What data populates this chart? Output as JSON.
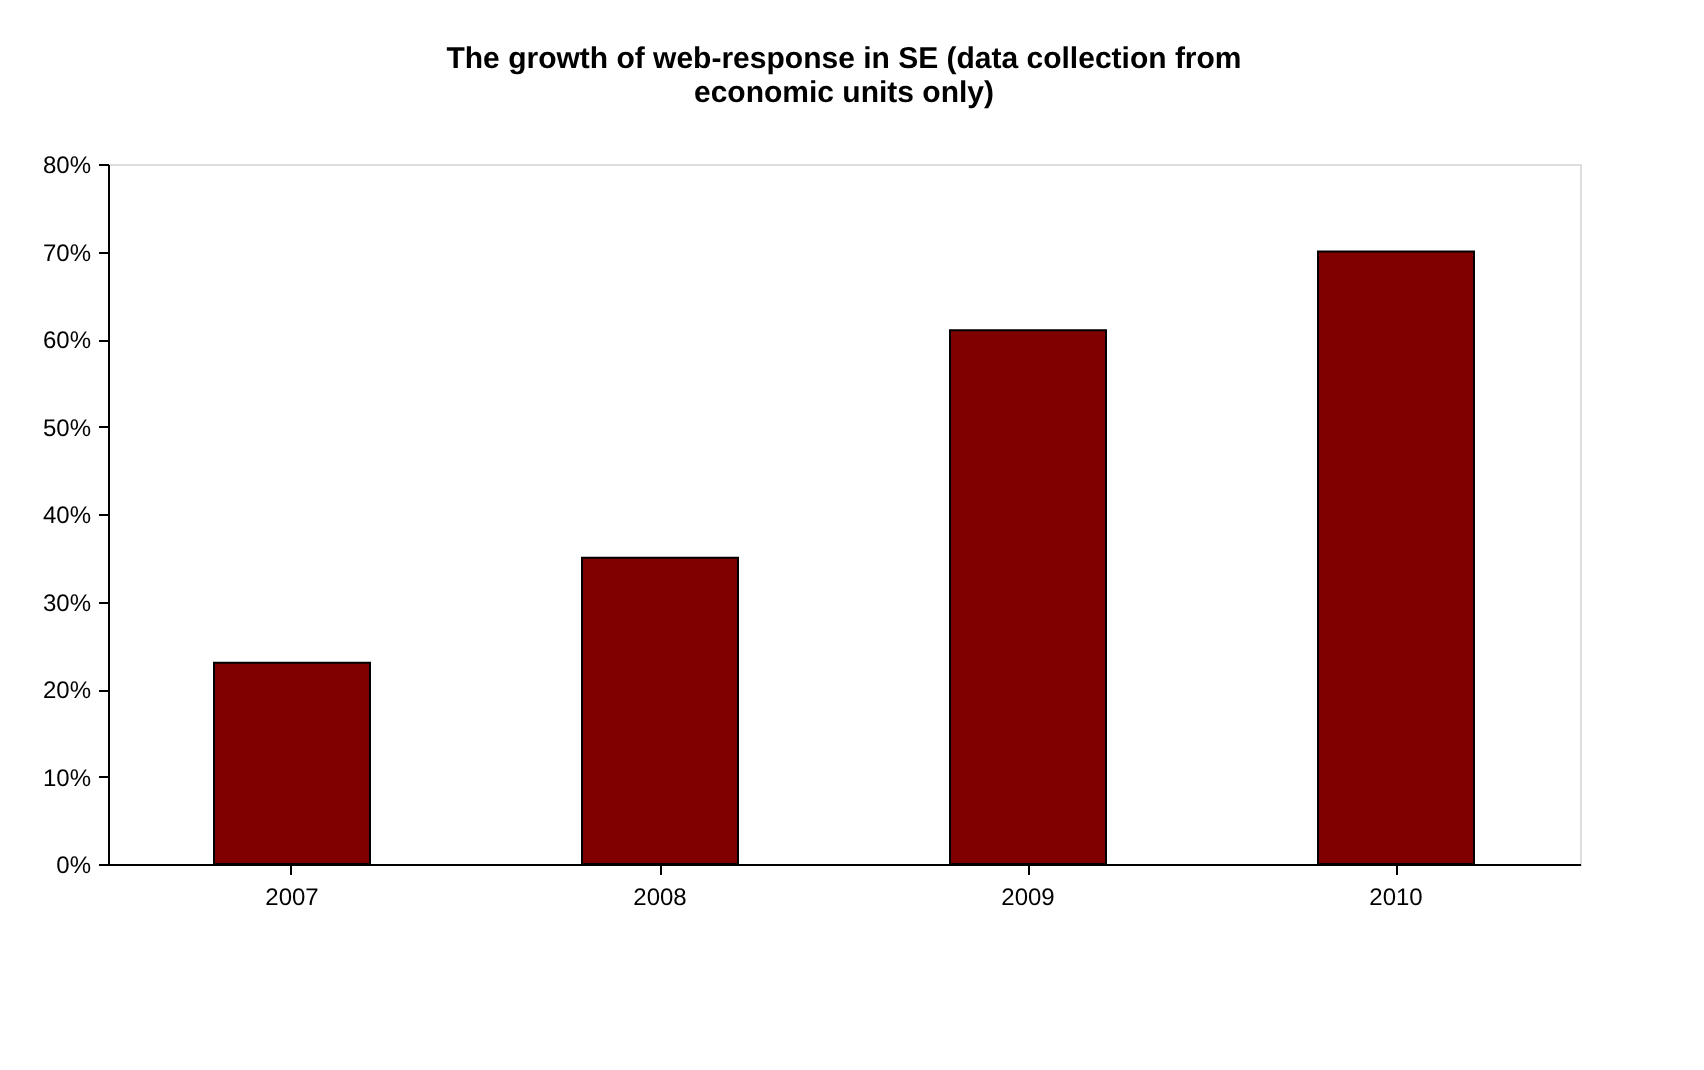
{
  "chart_data": {
    "type": "bar",
    "title": [
      "The growth of web-response in SE (data collection from",
      "economic units only)"
    ],
    "categories": [
      "2007",
      "2008",
      "2009",
      "2010"
    ],
    "values": [
      23,
      35,
      61,
      70
    ],
    "color": "#800000",
    "ylim": [
      0,
      80
    ],
    "yticks": [
      {
        "value": 0,
        "label": "0%"
      },
      {
        "value": 10,
        "label": "10%"
      },
      {
        "value": 20,
        "label": "20%"
      },
      {
        "value": 30,
        "label": "30%"
      },
      {
        "value": 40,
        "label": "40%"
      },
      {
        "value": 50,
        "label": "50%"
      },
      {
        "value": 60,
        "label": "60%"
      },
      {
        "value": 70,
        "label": "70%"
      },
      {
        "value": 80,
        "label": "80%"
      }
    ],
    "grid": false
  }
}
